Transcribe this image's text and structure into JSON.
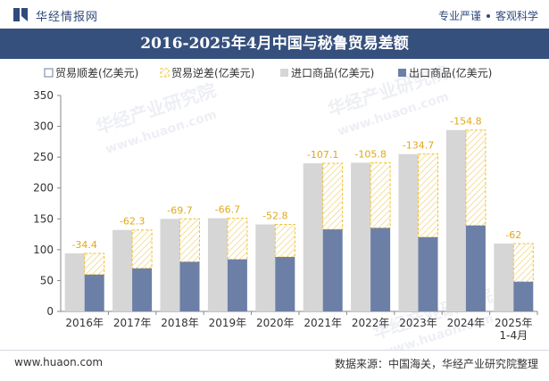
{
  "header": {
    "site_name": "华经情报网",
    "slogan_left": "专业严谨",
    "slogan_right": "客观科学"
  },
  "title": "2016-2025年4月中国与秘鲁贸易差额",
  "footer": {
    "url": "www.huaon.com",
    "source": "数据来源：中国海关，华经产业研究院整理"
  },
  "watermark": {
    "cn": "华经产业研究院",
    "en": "www.huaon.com"
  },
  "colors": {
    "import_bar": "#d6d6d6",
    "export_bar": "#6c7fa6",
    "balance_outline": "#f0c030",
    "balance_label": "#e0a81a",
    "title_bg": "#36507d"
  },
  "chart_data": {
    "type": "bar",
    "categories": [
      "2016年",
      "2017年",
      "2018年",
      "2019年",
      "2020年",
      "2021年",
      "2022年",
      "2023年",
      "2024年",
      "2025年\n1-4月"
    ],
    "series": [
      {
        "name": "贸易顺差(亿美元)",
        "values": [
          null,
          null,
          null,
          null,
          null,
          null,
          null,
          null,
          null,
          null
        ]
      },
      {
        "name": "贸易逆差(亿美元)",
        "values": [
          -34.4,
          -62.3,
          -69.7,
          -66.7,
          -52.8,
          -107.1,
          -105.8,
          -134.7,
          -154.8,
          -62
        ]
      },
      {
        "name": "进口商品(亿美元)",
        "values": [
          94,
          132,
          150,
          151,
          141,
          240,
          241,
          255,
          294,
          110
        ]
      },
      {
        "name": "出口商品(亿美元)",
        "values": [
          59.6,
          69.7,
          80.3,
          84.3,
          88.2,
          132.9,
          135.2,
          120.3,
          139.2,
          48
        ]
      }
    ],
    "data_labels": [
      "-34.4",
      "-62.3",
      "-69.7",
      "-66.7",
      "-52.8",
      "-107.1",
      "-105.8",
      "-134.7",
      "-154.8",
      "-62"
    ],
    "ylim": [
      0,
      350
    ],
    "yticks": [
      0,
      50,
      100,
      150,
      200,
      250,
      300,
      350
    ],
    "legend_position": "top-left",
    "grid": false
  }
}
